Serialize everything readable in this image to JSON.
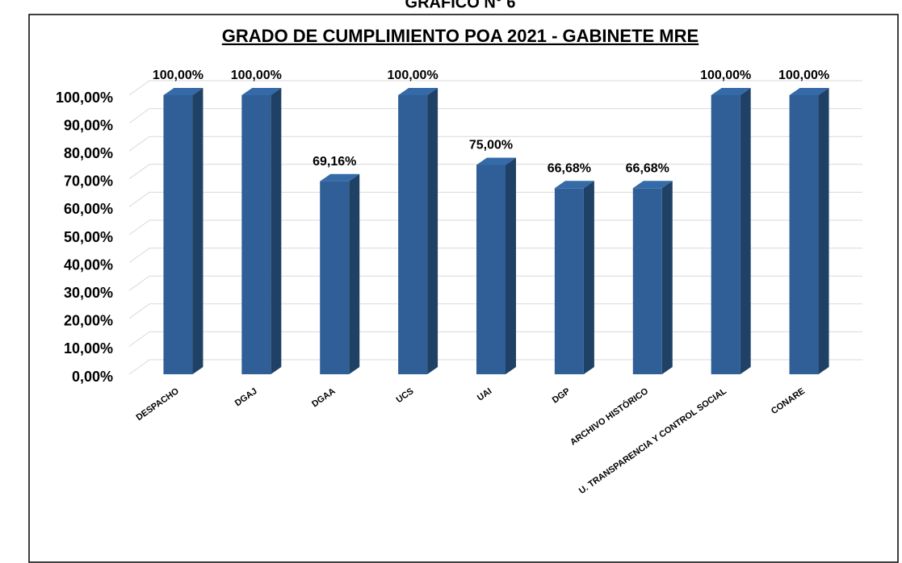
{
  "header": "GRAFICO N° 6",
  "chart_data": {
    "type": "bar3d",
    "title": "GRADO DE CUMPLIMIENTO POA 2021 - GABINETE MRE",
    "categories": [
      "DESPACHO",
      "DGAJ",
      "DGAA",
      "UCS",
      "UAI",
      "DGP",
      "ARCHIVO HISTÓRICO",
      "U. TRANSPARENCIA Y CONTROL SOCIAL",
      "CONARE"
    ],
    "values": [
      100,
      100,
      69.16,
      100,
      75,
      66.68,
      66.68,
      100,
      100
    ],
    "value_labels": [
      "100,00%",
      "100,00%",
      "69,16%",
      "100,00%",
      "75,00%",
      "66,68%",
      "66,68%",
      "100,00%",
      "100,00%"
    ],
    "color": "#2f5f96",
    "ylim": [
      0,
      100
    ],
    "yticks": [
      {
        "value": 0,
        "label": "0,00%"
      },
      {
        "value": 10,
        "label": "10,00%"
      },
      {
        "value": 20,
        "label": "20,00%"
      },
      {
        "value": 30,
        "label": "30,00%"
      },
      {
        "value": 40,
        "label": "40,00%"
      },
      {
        "value": 50,
        "label": "50,00%"
      },
      {
        "value": 60,
        "label": "60,00%"
      },
      {
        "value": 70,
        "label": "70,00%"
      },
      {
        "value": 80,
        "label": "80,00%"
      },
      {
        "value": 90,
        "label": "90,00%"
      },
      {
        "value": 100,
        "label": "100,00%"
      }
    ],
    "grid": true
  }
}
